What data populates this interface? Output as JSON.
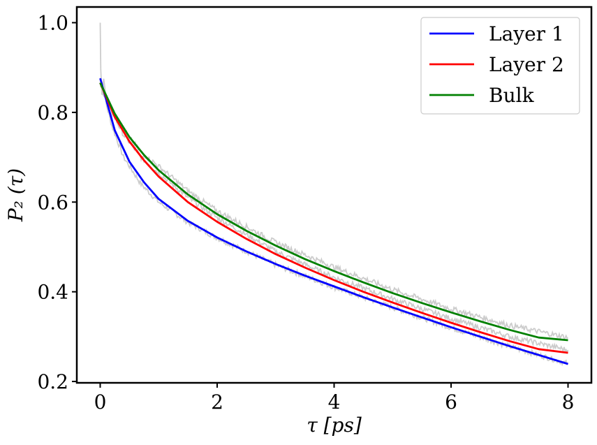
{
  "chart_data": {
    "type": "line",
    "title": "",
    "xlabel": "τ [ps]",
    "ylabel": "P₂ (τ)",
    "xlim": [
      -0.4,
      8.4
    ],
    "ylim": [
      0.197,
      1.035
    ],
    "xticks": [
      0,
      2,
      4,
      6,
      8
    ],
    "yticks": [
      0.2,
      0.4,
      0.6,
      0.8,
      1.0
    ],
    "xtick_labels": [
      "0",
      "2",
      "4",
      "6",
      "8"
    ],
    "ytick_labels": [
      "0.2",
      "0.4",
      "0.6",
      "0.8",
      "1.0"
    ],
    "grid": false,
    "legend_position": "top-right",
    "series": [
      {
        "name": "Layer 1",
        "color": "#0000ff",
        "x": [
          0,
          0.25,
          0.5,
          0.75,
          1,
          1.5,
          2,
          2.5,
          3,
          3.5,
          4,
          4.5,
          5,
          5.5,
          6,
          6.5,
          7,
          7.5,
          8
        ],
        "values": [
          0.876,
          0.76,
          0.69,
          0.644,
          0.607,
          0.558,
          0.521,
          0.49,
          0.462,
          0.436,
          0.412,
          0.388,
          0.365,
          0.343,
          0.321,
          0.3,
          0.279,
          0.259,
          0.239
        ]
      },
      {
        "name": "Layer 2",
        "color": "#ff0000",
        "x": [
          0,
          0.25,
          0.5,
          0.75,
          1,
          1.5,
          2,
          2.5,
          3,
          3.5,
          4,
          4.5,
          5,
          5.5,
          6,
          6.5,
          7,
          7.5,
          8
        ],
        "values": [
          0.866,
          0.79,
          0.735,
          0.693,
          0.657,
          0.6,
          0.556,
          0.518,
          0.484,
          0.454,
          0.426,
          0.4,
          0.376,
          0.353,
          0.331,
          0.31,
          0.29,
          0.272,
          0.264
        ]
      },
      {
        "name": "Bulk",
        "color": "#008000",
        "x": [
          0,
          0.25,
          0.5,
          0.75,
          1,
          1.5,
          2,
          2.5,
          3,
          3.5,
          4,
          4.5,
          5,
          5.5,
          6,
          6.5,
          7,
          7.5,
          8
        ],
        "values": [
          0.866,
          0.797,
          0.745,
          0.705,
          0.671,
          0.617,
          0.573,
          0.536,
          0.503,
          0.473,
          0.446,
          0.421,
          0.397,
          0.375,
          0.354,
          0.334,
          0.315,
          0.298,
          0.292
        ]
      }
    ],
    "noisy_background_series": [
      {
        "color": "#cccccc",
        "x": [
          0,
          0.01,
          0.03,
          0.06,
          0.1,
          0.2,
          0.4,
          0.7,
          1,
          1.5,
          2,
          3,
          4,
          5,
          6,
          7,
          8
        ],
        "values": [
          1.0,
          0.9,
          0.84,
          0.88,
          0.82,
          0.77,
          0.7,
          0.64,
          0.6,
          0.555,
          0.52,
          0.46,
          0.41,
          0.365,
          0.32,
          0.278,
          0.24
        ]
      },
      {
        "color": "#cccccc",
        "x": [
          0,
          0.1,
          0.2,
          0.4,
          0.7,
          1,
          1.5,
          2,
          3,
          4,
          5,
          6,
          7,
          8
        ],
        "values": [
          0.86,
          0.83,
          0.8,
          0.75,
          0.7,
          0.665,
          0.61,
          0.565,
          0.49,
          0.432,
          0.384,
          0.34,
          0.3,
          0.27
        ]
      },
      {
        "color": "#cccccc",
        "x": [
          0,
          0.1,
          0.2,
          0.4,
          0.7,
          1,
          1.5,
          2,
          3,
          4,
          5,
          6,
          7,
          8
        ],
        "values": [
          0.86,
          0.835,
          0.805,
          0.76,
          0.71,
          0.68,
          0.625,
          0.58,
          0.51,
          0.455,
          0.405,
          0.362,
          0.325,
          0.298
        ]
      }
    ]
  }
}
